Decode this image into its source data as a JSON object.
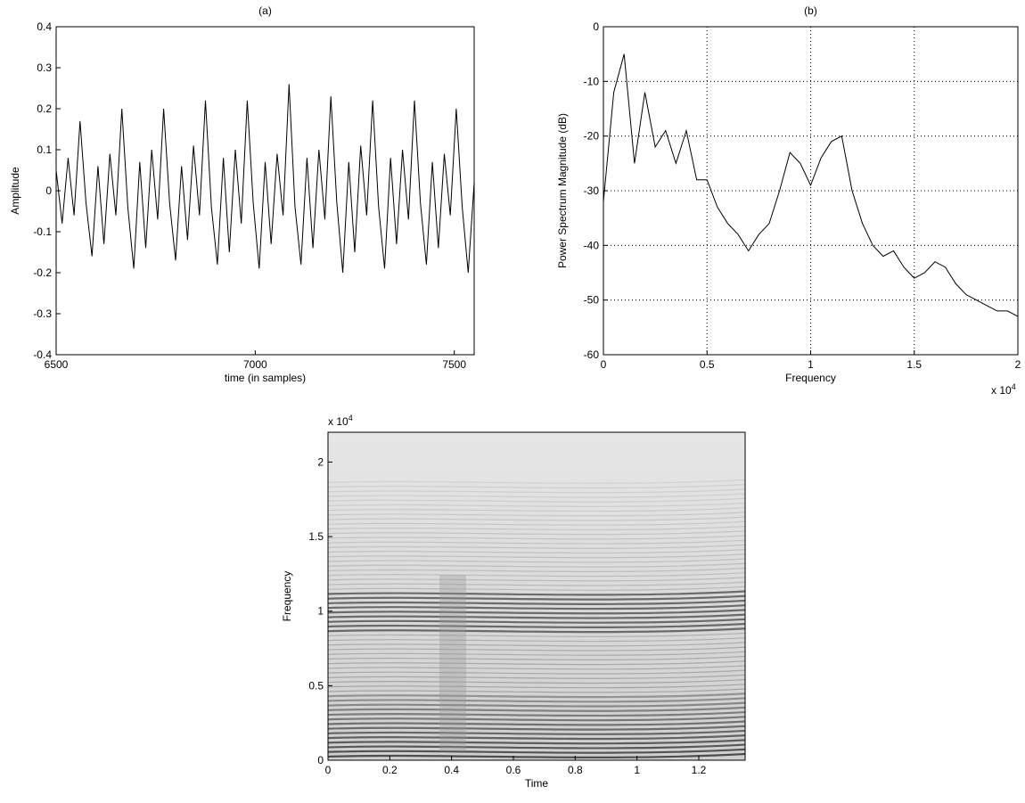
{
  "chart_data": [
    {
      "type": "line",
      "title": "(a)",
      "x_label": "time (in samples)",
      "y_label": "Amplitude",
      "xlim": [
        6500,
        7550
      ],
      "ylim": [
        -0.4,
        0.4
      ],
      "xticks": [
        6500,
        7000,
        7500
      ],
      "yticks": [
        -0.4,
        -0.3,
        -0.2,
        -0.1,
        0,
        0.1,
        0.2,
        0.3,
        0.4
      ],
      "grid": false,
      "series": [
        {
          "color": "#000000",
          "x": [
            6500,
            6515,
            6530,
            6545,
            6560,
            6575,
            6590,
            6605,
            6620,
            6635,
            6650,
            6665,
            6680,
            6695,
            6710,
            6725,
            6740,
            6755,
            6770,
            6785,
            6800,
            6815,
            6830,
            6845,
            6860,
            6875,
            6890,
            6905,
            6920,
            6935,
            6950,
            6965,
            6980,
            6995,
            7010,
            7025,
            7040,
            7055,
            7070,
            7085,
            7100,
            7115,
            7130,
            7145,
            7160,
            7175,
            7190,
            7205,
            7220,
            7235,
            7250,
            7265,
            7280,
            7295,
            7310,
            7325,
            7340,
            7355,
            7370,
            7385,
            7400,
            7415,
            7430,
            7445,
            7460,
            7475,
            7490,
            7505,
            7520,
            7535,
            7550
          ],
          "values": [
            0.05,
            -0.08,
            0.08,
            -0.06,
            0.17,
            -0.03,
            -0.16,
            0.06,
            -0.13,
            0.09,
            -0.06,
            0.2,
            -0.04,
            -0.19,
            0.07,
            -0.14,
            0.1,
            -0.07,
            0.2,
            -0.03,
            -0.17,
            0.06,
            -0.12,
            0.11,
            -0.06,
            0.22,
            -0.04,
            -0.18,
            0.08,
            -0.15,
            0.1,
            -0.08,
            0.22,
            -0.03,
            -0.19,
            0.07,
            -0.13,
            0.09,
            -0.06,
            0.26,
            -0.04,
            -0.18,
            0.08,
            -0.14,
            0.1,
            -0.07,
            0.23,
            -0.03,
            -0.2,
            0.07,
            -0.15,
            0.11,
            -0.06,
            0.22,
            -0.04,
            -0.19,
            0.08,
            -0.13,
            0.1,
            -0.07,
            0.22,
            -0.03,
            -0.18,
            0.07,
            -0.14,
            0.09,
            -0.06,
            0.2,
            -0.04,
            -0.2,
            0.02
          ]
        }
      ]
    },
    {
      "type": "line",
      "title": "(b)",
      "x_label": "Frequency",
      "y_label": "Power Spectrum Magnitude (dB)",
      "x_multiplier": "x 10",
      "x_exponent": "4",
      "xlim": [
        0,
        2
      ],
      "ylim": [
        -60,
        0
      ],
      "xticks": [
        0,
        0.5,
        1,
        1.5,
        2
      ],
      "yticks": [
        -60,
        -50,
        -40,
        -30,
        -20,
        -10,
        0
      ],
      "grid": true,
      "series": [
        {
          "color": "#000000",
          "x": [
            0,
            0.05,
            0.1,
            0.15,
            0.2,
            0.25,
            0.3,
            0.35,
            0.4,
            0.45,
            0.5,
            0.55,
            0.6,
            0.65,
            0.7,
            0.75,
            0.8,
            0.85,
            0.9,
            0.95,
            1,
            1.05,
            1.1,
            1.15,
            1.2,
            1.25,
            1.3,
            1.35,
            1.4,
            1.45,
            1.5,
            1.55,
            1.6,
            1.65,
            1.7,
            1.75,
            1.8,
            1.85,
            1.9,
            1.95,
            2
          ],
          "values": [
            -32,
            -12,
            -5,
            -25,
            -12,
            -22,
            -19,
            -25,
            -19,
            -28,
            -28,
            -33,
            -36,
            -38,
            -41,
            -38,
            -36,
            -30,
            -23,
            -25,
            -29,
            -24,
            -21,
            -20,
            -30,
            -36,
            -40,
            -42,
            -41,
            -44,
            -46,
            -45,
            -43,
            -44,
            -47,
            -49,
            -50,
            -51,
            -52,
            -52,
            -53
          ]
        }
      ]
    },
    {
      "type": "spectrogram",
      "x_label": "Time",
      "y_label": "Frequency",
      "y_multiplier": "x 10",
      "y_exponent": "4",
      "xlim": [
        0,
        1.35
      ],
      "ylim": [
        0,
        2.2
      ],
      "xticks": [
        0,
        0.2,
        0.4,
        0.6,
        0.8,
        1,
        1.2
      ],
      "yticks": [
        0,
        0.5,
        1,
        1.5,
        2
      ],
      "grid": false
    }
  ]
}
